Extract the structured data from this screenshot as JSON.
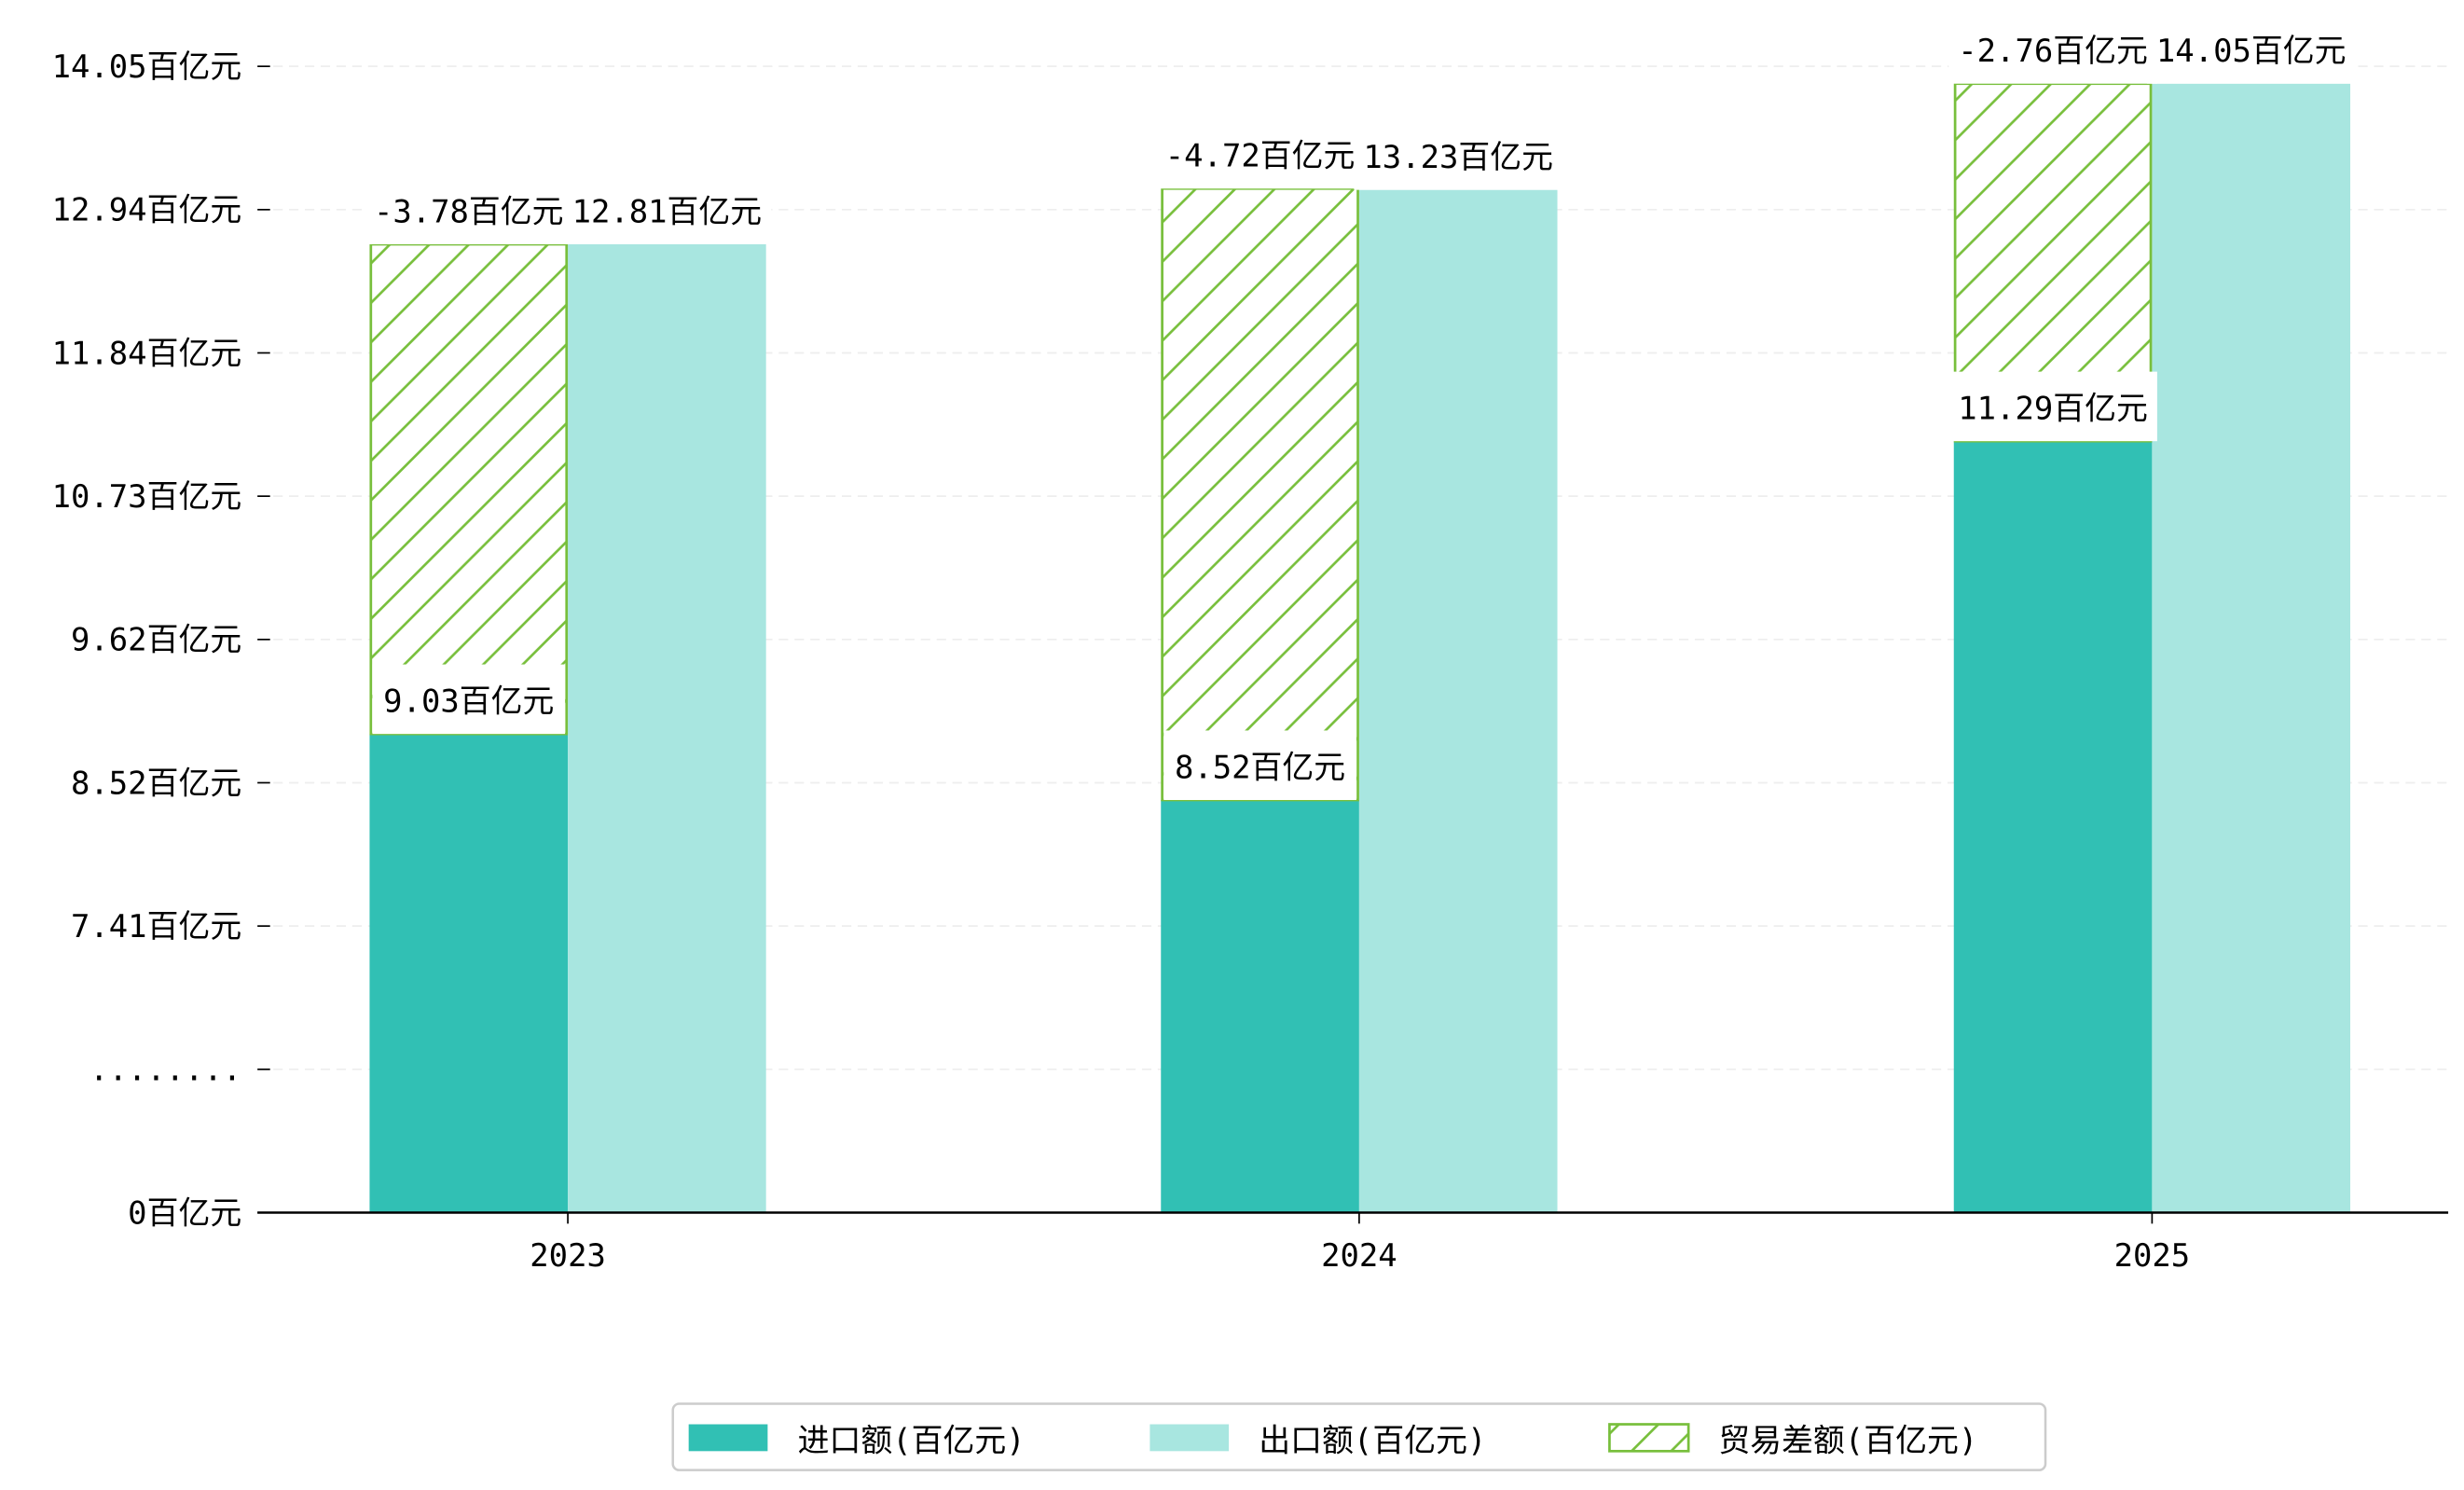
{
  "chart_data": {
    "type": "bar",
    "categories": [
      "2023",
      "2024",
      "2025"
    ],
    "series": [
      {
        "name": "进口额(百亿元)",
        "values": [
          9.03,
          8.52,
          11.29
        ],
        "color": "#31c0b4"
      },
      {
        "name": "出口额(百亿元)",
        "values": [
          12.81,
          13.23,
          14.05
        ],
        "color": "#a8e6e0"
      },
      {
        "name": "贸易差额(百亿元)",
        "values": [
          -3.78,
          -4.72,
          -2.76
        ],
        "color": "#78bf3c",
        "style": "hatched-stacked"
      }
    ],
    "unit": "百亿元",
    "yticks": [
      "0百亿元",
      "........",
      "7.41百亿元",
      "8.52百亿元",
      "9.62百亿元",
      "10.73百亿元",
      "11.84百亿元",
      "12.94百亿元",
      "14.05百亿元"
    ],
    "broken_axis": true,
    "grid": "horizontal-dashed",
    "legend": {
      "position": "bottom-center"
    },
    "title": "",
    "xlabel": "",
    "ylabel": ""
  }
}
